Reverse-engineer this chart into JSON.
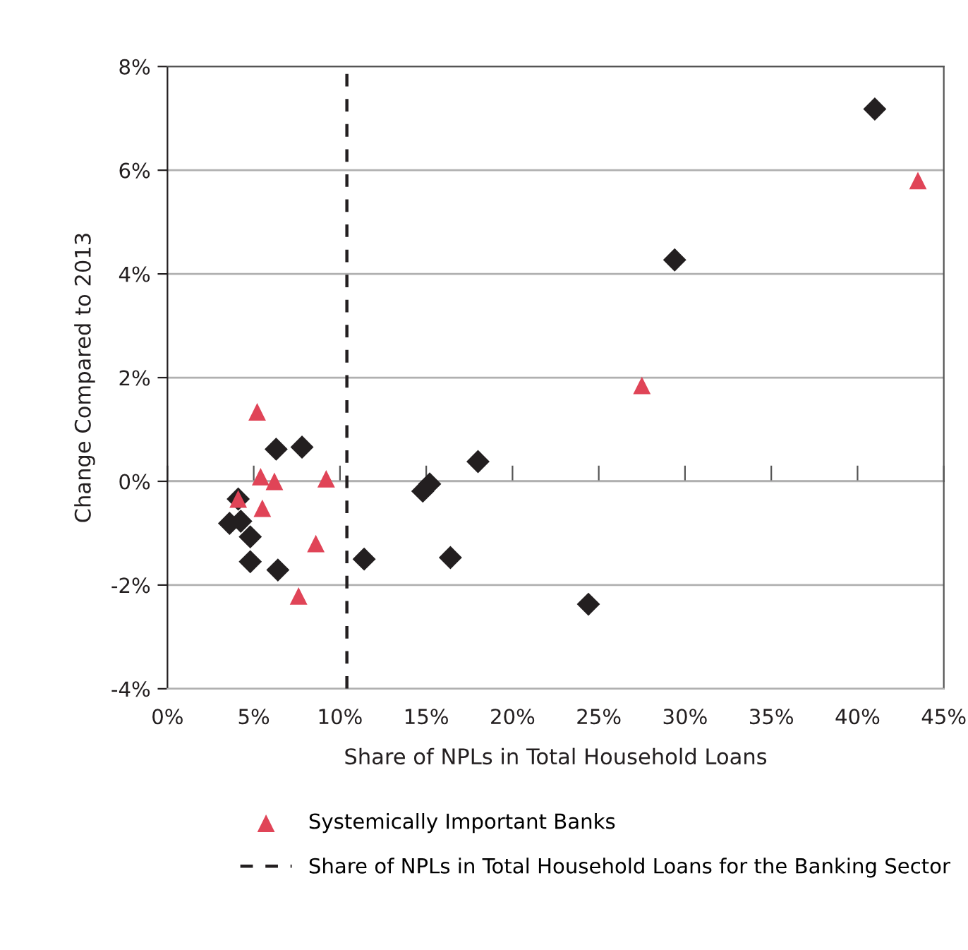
{
  "chart_data": {
    "type": "scatter",
    "xlabel": "Share of NPLs in Total Household Loans",
    "ylabel": "Change Compared to 2013",
    "series": [
      {
        "color": "#231f20",
        "marker": "diamond",
        "x": [
          41.0,
          29.4,
          18.0,
          15.2,
          14.8,
          16.4,
          24.4,
          11.4,
          6.3,
          7.8,
          4.1,
          3.6,
          4.25,
          4.8,
          4.8,
          6.4
        ],
        "values": [
          7.18,
          4.27,
          0.38,
          -0.05,
          -0.19,
          -1.47,
          -2.37,
          -1.5,
          0.62,
          0.66,
          -0.34,
          -0.81,
          -0.77,
          -1.07,
          -1.55,
          -1.71
        ]
      },
      {
        "name": "Systemically Important Banks",
        "color": "#e04457",
        "marker": "triangle",
        "x": [
          5.2,
          5.4,
          6.2,
          9.2,
          4.1,
          5.5,
          8.6,
          7.6,
          27.5,
          43.5
        ],
        "values": [
          1.34,
          0.09,
          0.0,
          0.05,
          -0.34,
          -0.52,
          -1.2,
          -2.21,
          1.85,
          5.8
        ]
      }
    ],
    "ref_lines": [
      {
        "axis": "x",
        "value": 10.4,
        "label": "Share of NPLs in Total Household Loans for the Banking Sector",
        "color": "#231f20",
        "line_style": "dashed"
      }
    ],
    "xlim": [
      0,
      45
    ],
    "ylim": [
      -4,
      8
    ],
    "xticks": [
      {
        "value": 0,
        "label": "0%"
      },
      {
        "value": 5,
        "label": "5%"
      },
      {
        "value": 10,
        "label": "10%"
      },
      {
        "value": 15,
        "label": "15%"
      },
      {
        "value": 20,
        "label": "20%"
      },
      {
        "value": 25,
        "label": "25%"
      },
      {
        "value": 30,
        "label": "30%"
      },
      {
        "value": 35,
        "label": "35%"
      },
      {
        "value": 40,
        "label": "40%"
      },
      {
        "value": 45,
        "label": "45%"
      }
    ],
    "yticks": [
      {
        "value": -4,
        "label": "-4%"
      },
      {
        "value": -2,
        "label": "-2%"
      },
      {
        "value": 0,
        "label": "0%"
      },
      {
        "value": 2,
        "label": "2%"
      },
      {
        "value": 4,
        "label": "4%"
      },
      {
        "value": 6,
        "label": "6%"
      },
      {
        "value": 8,
        "label": "8%"
      }
    ],
    "grid": "y",
    "legend": "bottom"
  }
}
